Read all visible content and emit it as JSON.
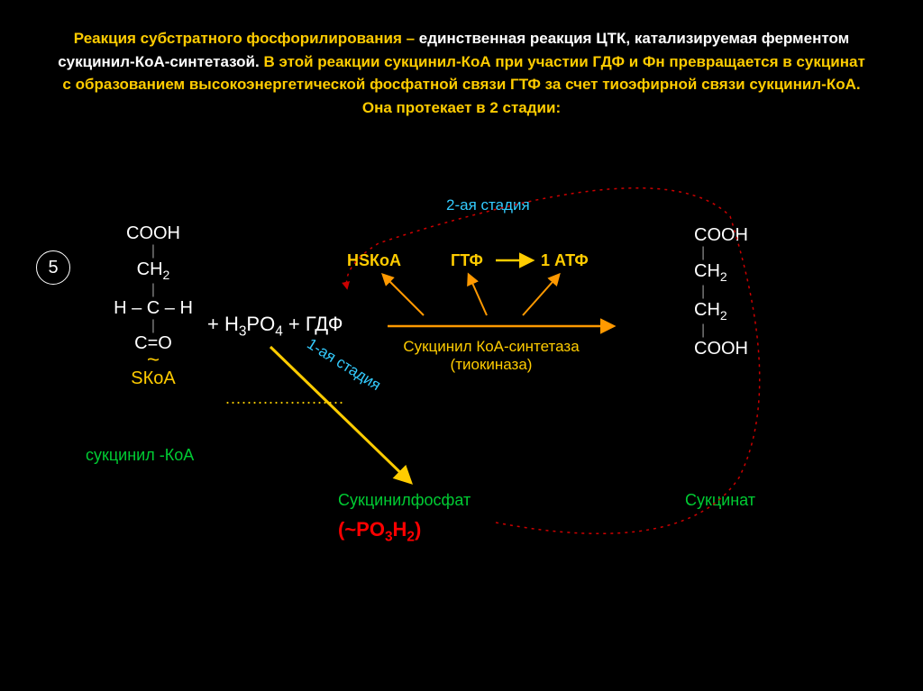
{
  "header": {
    "part1": "Реакция субстратного фосфорилирования – ",
    "part2": "единственная реакция ЦТК, катализируемая ферментом сукцинил-КоА-синтетазой. ",
    "part3": "В этой реакции сукцинил-КоА при участии ГДФ и Фн превращается в сукцинат с образованием высокоэнергетической фосфатной связи ГТФ за счет тиоэфирной связи сукцинил-КоА. Она протекает в 2 стадии:",
    "color1": "#ffcc00",
    "color2": "#ffffff",
    "color3": "#ffcc00"
  },
  "step_number": "5",
  "succinyl_coa": {
    "l1": "COOH",
    "l2": "CH₂",
    "l3": "H – C – H",
    "l4": "C=O",
    "l5": "SКоА",
    "name": "сукцинил -КоА"
  },
  "reactants": {
    "plus1": "+  H₃PO₄ + ГДФ",
    "dots": "......................"
  },
  "stage1": "1-ая стадия",
  "stage2": "2-ая стадия",
  "hskoa": "HSКоА",
  "gtp": "ГТФ",
  "atp": "1 АТФ",
  "enzyme": {
    "line1": "Сукцинил КоА-синтетаза",
    "line2": "(тиокиназа)"
  },
  "succinyl_phosphate": {
    "name": "Сукцинилфосфат",
    "formula": "(~PO₃H₂)"
  },
  "succinate": {
    "l1": "COOH",
    "l2": "CH₂",
    "l3": "CH₂",
    "l4": "COOH",
    "name": "Сукцинат"
  },
  "colors": {
    "yellow": "#ffcc00",
    "green": "#00cc33",
    "red": "#ff0000",
    "cyan": "#33ccff",
    "white": "#ffffff",
    "arrow_orange": "#ff9900",
    "arrow_red_dashed": "#cc0000"
  }
}
